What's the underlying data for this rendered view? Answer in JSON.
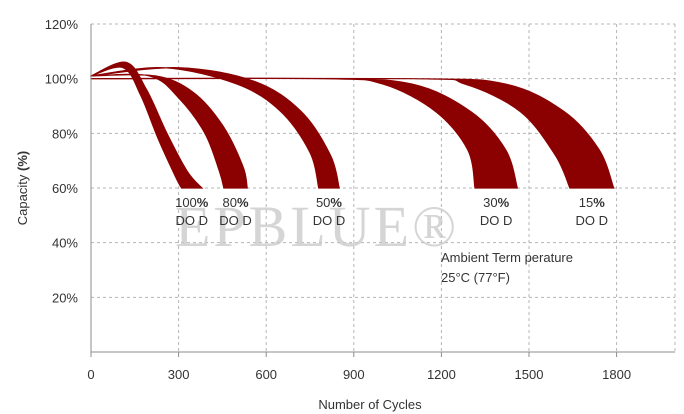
{
  "chart_data": {
    "type": "area",
    "xlabel": "Number of Cycles",
    "ylabel_parts": [
      "Capacity ",
      "(%)"
    ],
    "xlim": [
      0,
      2000
    ],
    "ylim": [
      0,
      120
    ],
    "xticks": [
      0,
      300,
      600,
      900,
      1200,
      1500,
      1800
    ],
    "yticks": [
      20,
      40,
      60,
      80,
      100,
      120
    ],
    "ytick_labels": [
      "20%",
      "40%",
      "60%",
      "80%",
      "100%",
      "120%"
    ],
    "grid": true,
    "series": [
      {
        "name": "100% DOD",
        "label_pct": "100",
        "label_dod": "DO D",
        "upper": [
          [
            0,
            101
          ],
          [
            120,
            106
          ],
          [
            190,
            96
          ],
          [
            260,
            80
          ],
          [
            330,
            66
          ],
          [
            380,
            60
          ]
        ],
        "lower": [
          [
            0,
            101
          ],
          [
            110,
            104
          ],
          [
            170,
            94
          ],
          [
            230,
            78
          ],
          [
            290,
            64
          ],
          [
            310,
            60
          ]
        ]
      },
      {
        "name": "80% DOD",
        "label_pct": "80",
        "label_dod": "DO D",
        "upper": [
          [
            0,
            101
          ],
          [
            220,
            101
          ],
          [
            350,
            95
          ],
          [
            450,
            83
          ],
          [
            520,
            68
          ],
          [
            535,
            60
          ]
        ],
        "lower": [
          [
            0,
            101
          ],
          [
            200,
            101
          ],
          [
            300,
            93
          ],
          [
            390,
            80
          ],
          [
            440,
            66
          ],
          [
            455,
            60
          ]
        ]
      },
      {
        "name": "50% DOD",
        "label_pct": "50",
        "label_dod": "DO D",
        "upper": [
          [
            0,
            101
          ],
          [
            300,
            104
          ],
          [
            560,
            99
          ],
          [
            720,
            88
          ],
          [
            820,
            72
          ],
          [
            850,
            60
          ]
        ],
        "lower": [
          [
            0,
            101
          ],
          [
            250,
            104
          ],
          [
            500,
            98
          ],
          [
            650,
            88
          ],
          [
            750,
            73
          ],
          [
            780,
            60
          ]
        ]
      },
      {
        "name": "30% DOD",
        "label_pct": "30",
        "label_dod": "DO D",
        "upper": [
          [
            0,
            100
          ],
          [
            800,
            100
          ],
          [
            1100,
            98
          ],
          [
            1300,
            88
          ],
          [
            1420,
            74
          ],
          [
            1460,
            60
          ]
        ],
        "lower": [
          [
            0,
            100
          ],
          [
            800,
            100
          ],
          [
            1000,
            98
          ],
          [
            1180,
            88
          ],
          [
            1290,
            74
          ],
          [
            1315,
            60
          ]
        ]
      },
      {
        "name": "15% DOD",
        "label_pct": "15",
        "label_dod": "DO D",
        "upper": [
          [
            0,
            100
          ],
          [
            1100,
            100
          ],
          [
            1420,
            98
          ],
          [
            1620,
            88
          ],
          [
            1740,
            74
          ],
          [
            1790,
            60
          ]
        ],
        "lower": [
          [
            0,
            100
          ],
          [
            1100,
            100
          ],
          [
            1280,
            98
          ],
          [
            1470,
            88
          ],
          [
            1590,
            72
          ],
          [
            1640,
            60
          ]
        ]
      }
    ],
    "band_color": "#8b0000",
    "annotation": {
      "line1": "Ambient  Term perature",
      "line2": "25°C (77°F)"
    },
    "watermark": "EPBLUE®"
  }
}
